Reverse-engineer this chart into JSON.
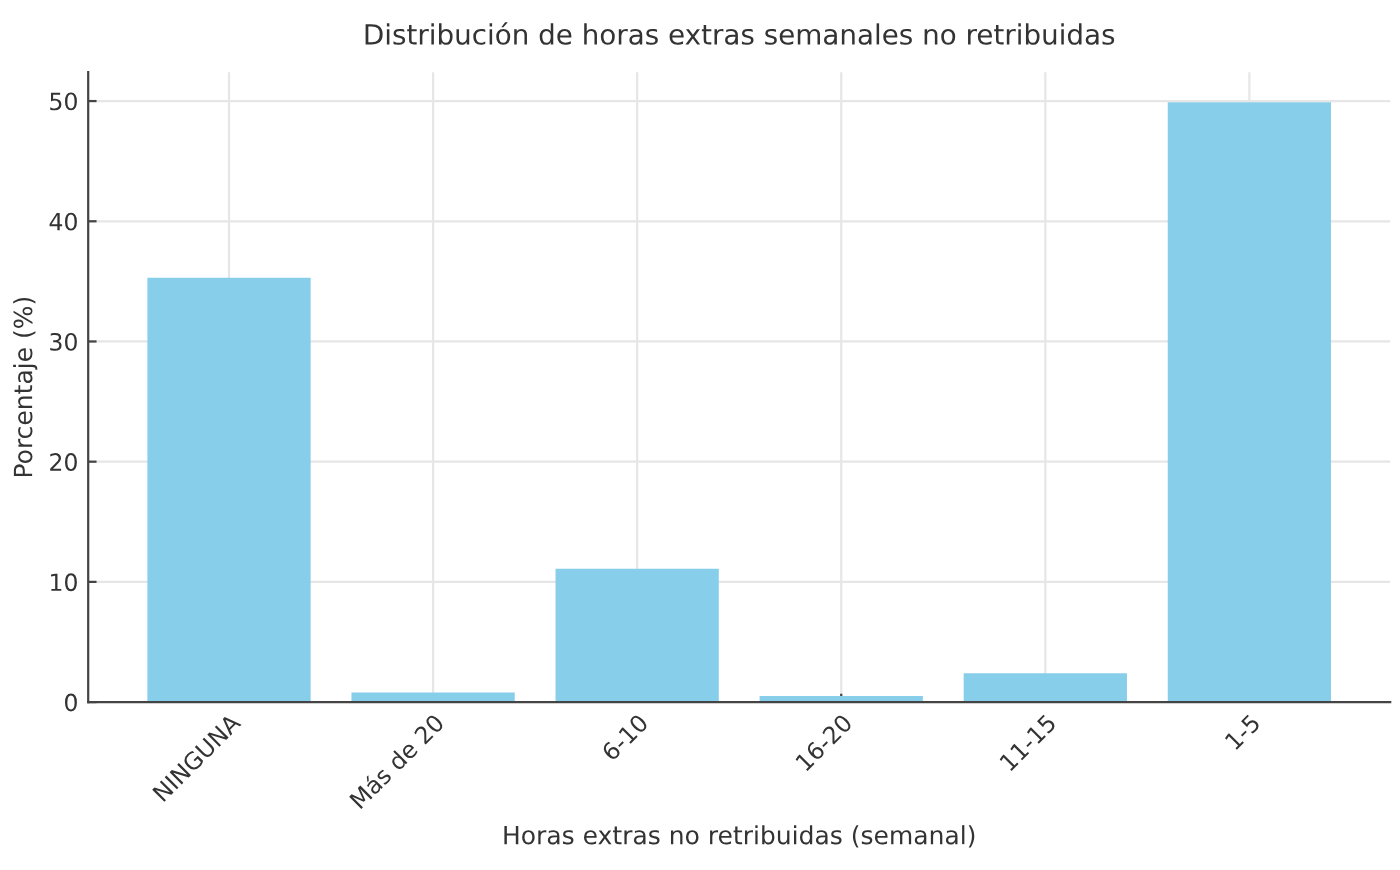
{
  "chart_data": {
    "type": "bar",
    "title": "Distribución de horas extras semanales no retribuidas",
    "xlabel": "Horas extras no retribuidas (semanal)",
    "ylabel": "Porcentaje (%)",
    "categories": [
      "NINGUNA",
      "Más de 20",
      "6-10",
      "16-20",
      "11-15",
      "1-5"
    ],
    "values": [
      35.3,
      0.8,
      11.1,
      0.5,
      2.4,
      49.9
    ],
    "color": "#87ceeb",
    "ylim": [
      0,
      52.4
    ],
    "yticks": [
      0,
      10,
      20,
      30,
      40,
      50
    ],
    "grid": true
  }
}
